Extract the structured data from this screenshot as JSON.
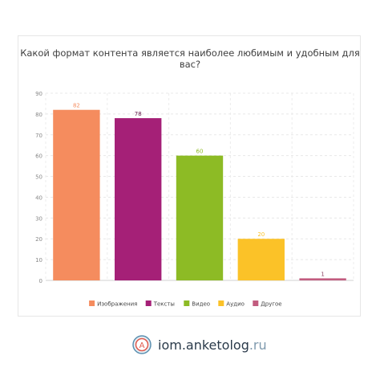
{
  "chart_data": {
    "type": "bar",
    "title": "Какой формат контента является наиболее любимым и удобным для вас?",
    "categories": [
      "Изображения",
      "Тексты",
      "Видео",
      "Аудио",
      "Другое"
    ],
    "values": [
      82,
      78,
      60,
      20,
      1
    ],
    "colors": [
      "#f58c5e",
      "#a52077",
      "#8dbb25",
      "#fbc228",
      "#c25c7f"
    ],
    "label_colors": [
      "#f58c5e",
      "#5a1040",
      "#8dbb25",
      "#fbc228",
      "#8a4060"
    ],
    "yticks": [
      0,
      10,
      20,
      30,
      40,
      50,
      60,
      70,
      80,
      90
    ],
    "ylim": [
      0,
      90
    ],
    "grid": true,
    "legend": "bottom"
  },
  "brand": {
    "logo_letter": "A",
    "name": "iom.anketolog",
    "tld": ".ru"
  }
}
